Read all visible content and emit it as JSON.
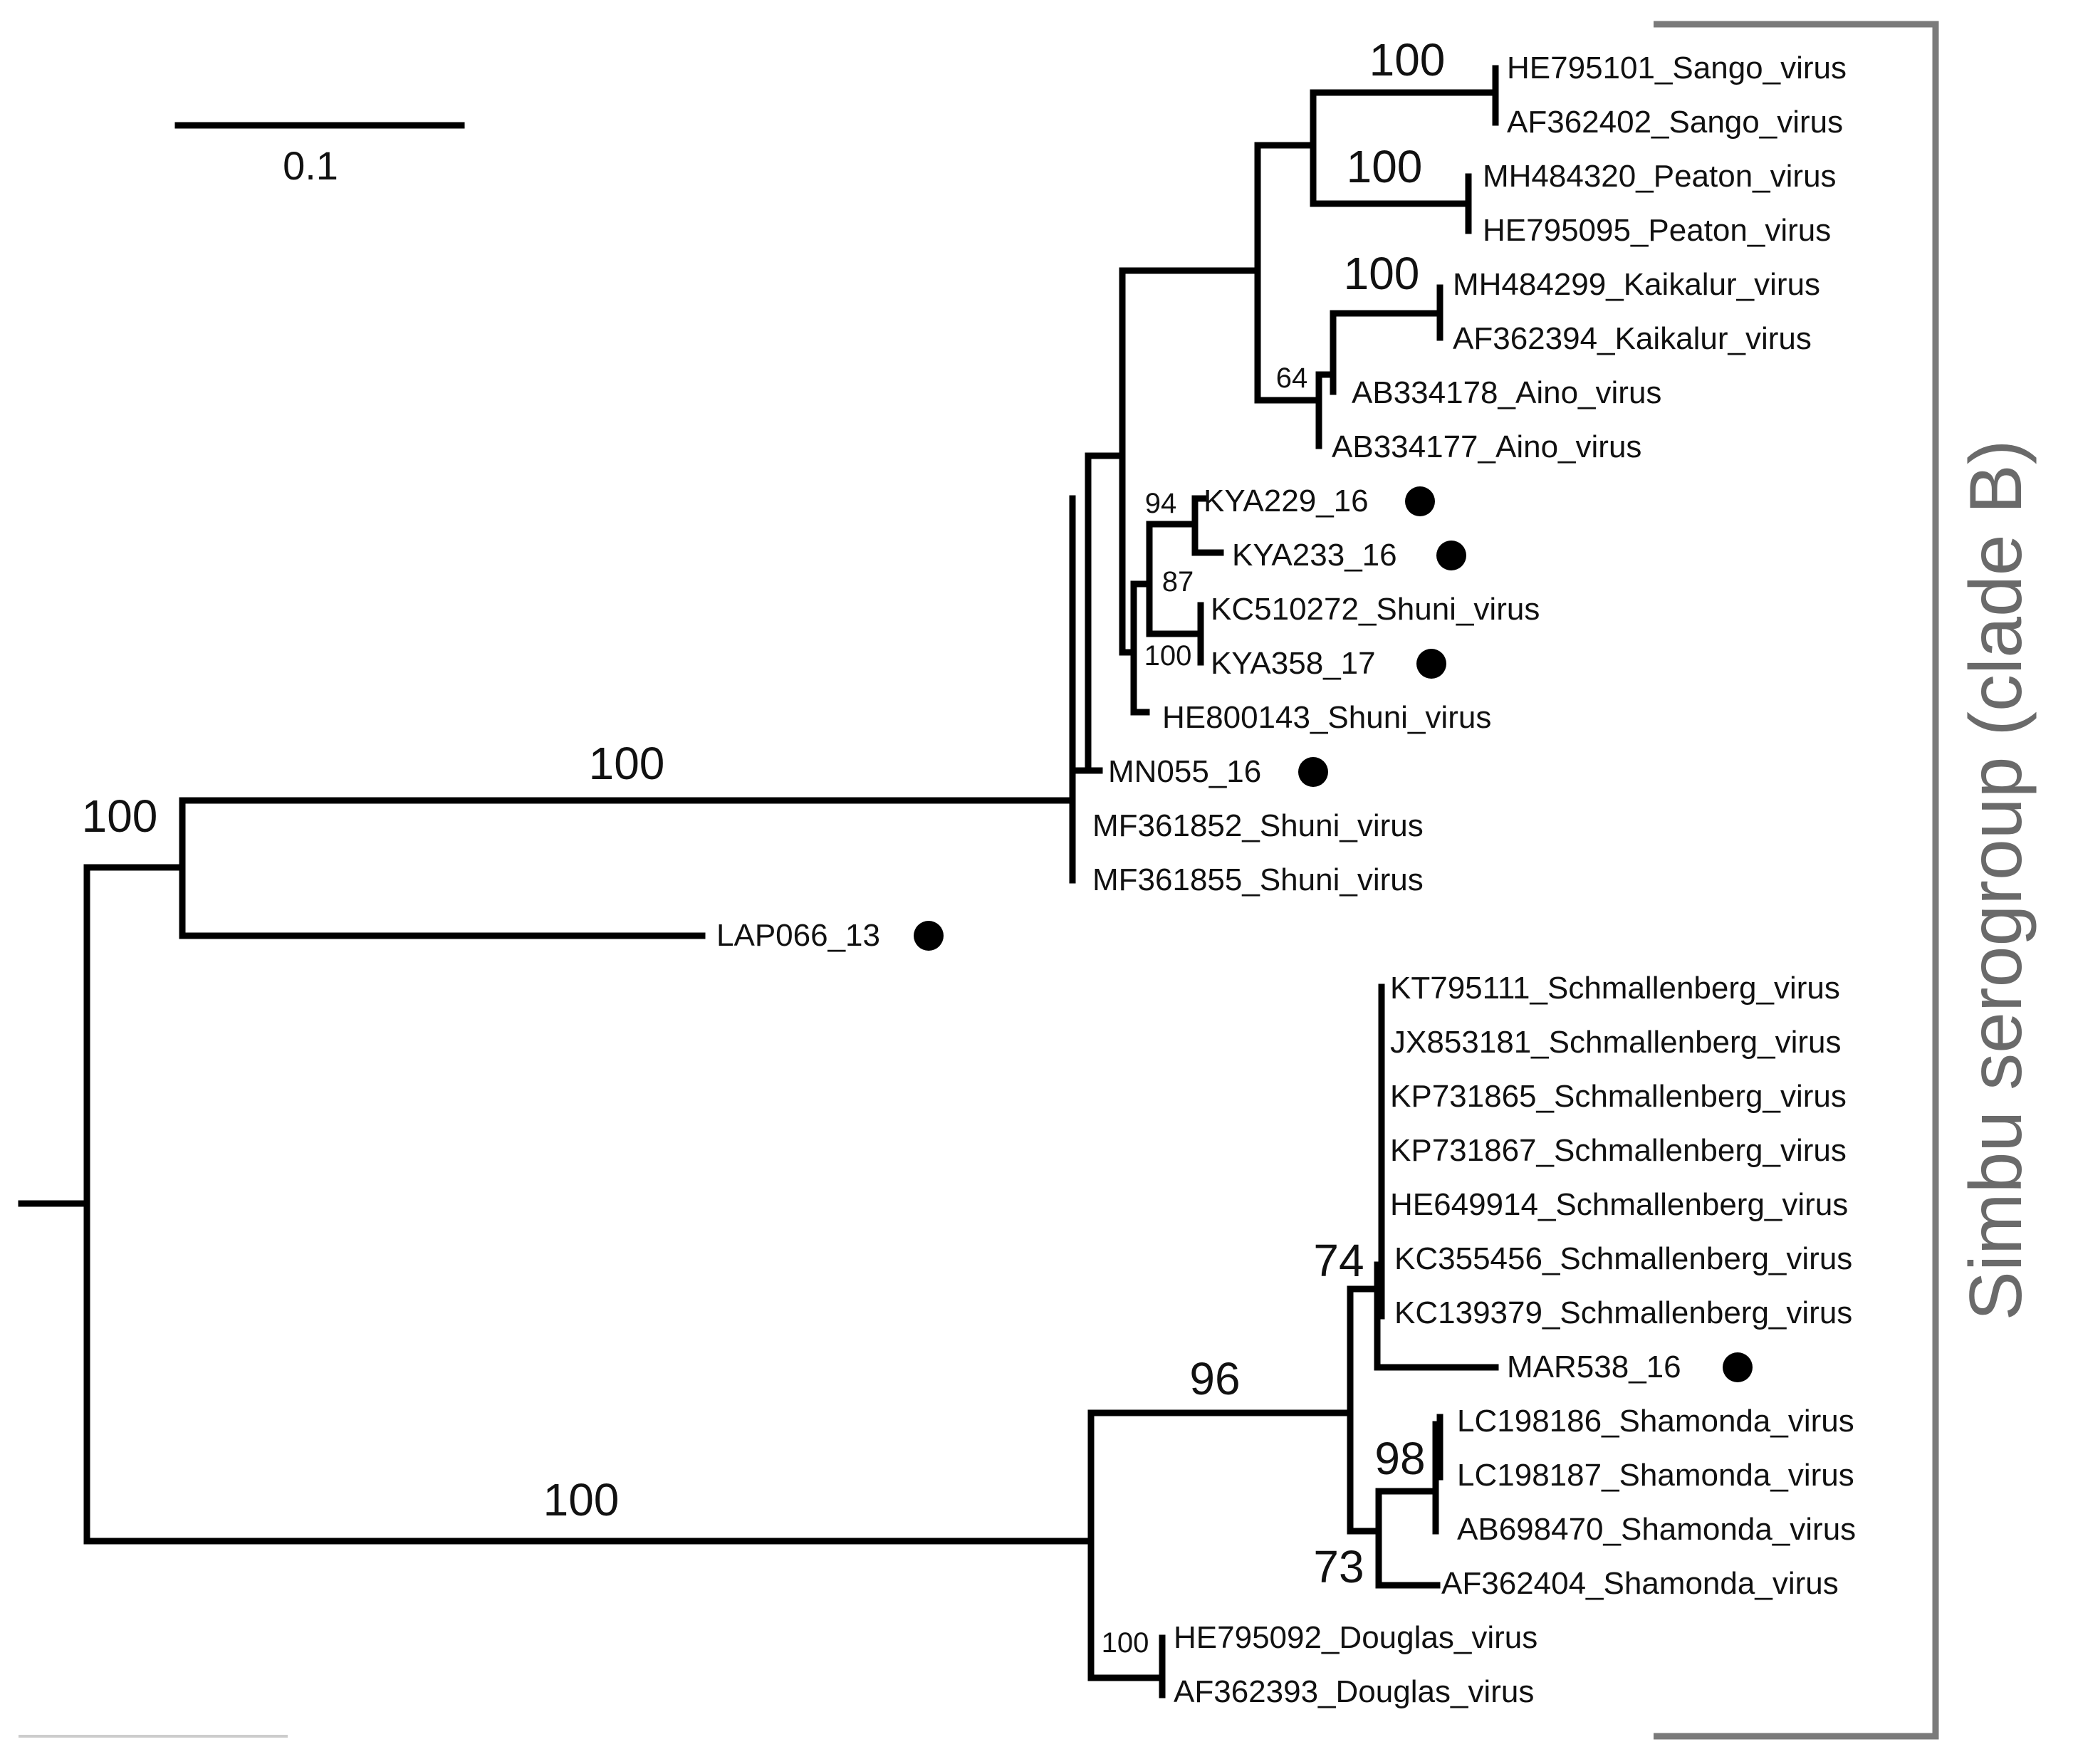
{
  "scale_bar": {
    "label": "0.1"
  },
  "clade_label": "Simbu serogroup (clade B)",
  "colors": {
    "branch": "#000000",
    "bracket": "#7a7a7a",
    "marker": "#000000"
  },
  "taxa": [
    {
      "label": "HE795101_Sango_virus"
    },
    {
      "label": "AF362402_Sango_virus"
    },
    {
      "label": "MH484320_Peaton_virus"
    },
    {
      "label": "HE795095_Peaton_virus"
    },
    {
      "label": "MH484299_Kaikalur_virus"
    },
    {
      "label": "AF362394_Kaikalur_virus"
    },
    {
      "label": "AB334178_Aino_virus"
    },
    {
      "label": "AB334177_Aino_virus"
    },
    {
      "label": "KYA229_16",
      "marked": true
    },
    {
      "label": "KYA233_16",
      "marked": true
    },
    {
      "label": "KC510272_Shuni_virus"
    },
    {
      "label": "KYA358_17",
      "marked": true
    },
    {
      "label": "HE800143_Shuni_virus"
    },
    {
      "label": "MN055_16",
      "marked": true
    },
    {
      "label": "MF361852_Shuni_virus"
    },
    {
      "label": "MF361855_Shuni_virus"
    },
    {
      "label": "LAP066_13",
      "marked": true
    },
    {
      "label": "KT795111_Schmallenberg_virus"
    },
    {
      "label": "JX853181_Schmallenberg_virus"
    },
    {
      "label": "KP731865_Schmallenberg_virus"
    },
    {
      "label": "KP731867_Schmallenberg_virus"
    },
    {
      "label": "HE649914_Schmallenberg_virus"
    },
    {
      "label": "KC355456_Schmallenberg_virus"
    },
    {
      "label": "KC139379_Schmallenberg_virus"
    },
    {
      "label": "MAR538_16",
      "marked": true
    },
    {
      "label": "LC198186_Shamonda_virus"
    },
    {
      "label": "LC198187_Shamonda_virus"
    },
    {
      "label": "AB698470_Shamonda_virus"
    },
    {
      "label": "AF362404_Shamonda_virus"
    },
    {
      "label": "HE795092_Douglas_virus"
    },
    {
      "label": "AF362393_Douglas_virus"
    }
  ],
  "support_values": {
    "sango": "100",
    "peaton": "100",
    "kaikalur": "100",
    "aino_kaikalur": "64",
    "kya229_kya233": "94",
    "kya_group": "87",
    "kc510272_kya358": "100",
    "shuni_clade_branch": "100",
    "shuni_lap066": "100",
    "schmallenberg_mar538": "74",
    "schmallenberg_shamonda": "96",
    "shamonda_lc": "98",
    "shamonda_group": "73",
    "douglas": "100",
    "lower_clade_branch": "100"
  }
}
